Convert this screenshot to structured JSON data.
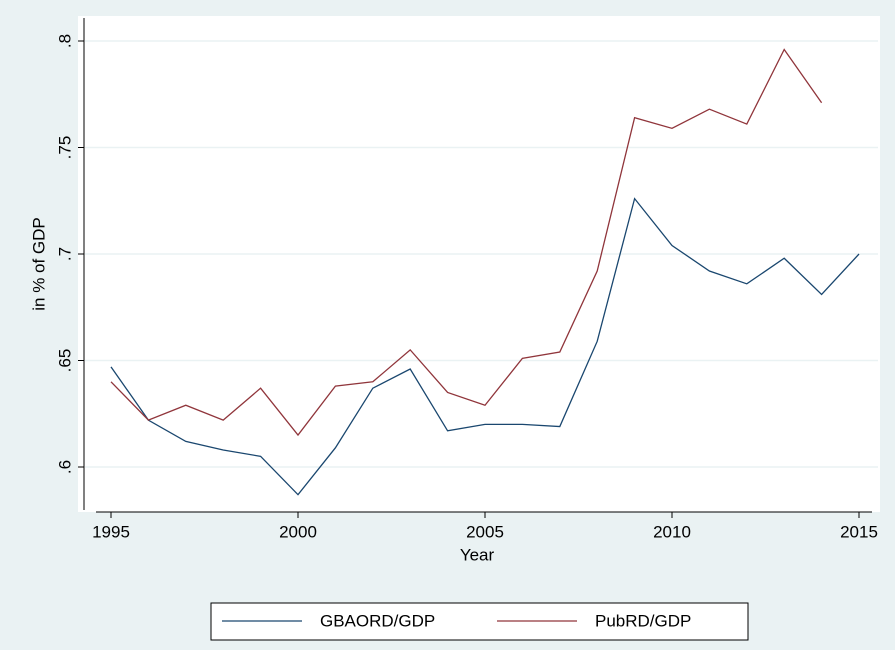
{
  "chart_data": {
    "type": "line",
    "x_label": "Year",
    "y_label": "in % of GDP",
    "x": [
      1995,
      1996,
      1997,
      1998,
      1999,
      2000,
      2001,
      2002,
      2003,
      2004,
      2005,
      2006,
      2007,
      2008,
      2009,
      2010,
      2011,
      2012,
      2013,
      2014,
      2015
    ],
    "series": [
      {
        "name": "GBAORD/GDP",
        "color": "#1a476f",
        "values": [
          0.647,
          0.622,
          0.612,
          0.608,
          0.605,
          0.587,
          0.609,
          0.637,
          0.646,
          0.617,
          0.62,
          0.62,
          0.619,
          0.659,
          0.726,
          0.704,
          0.692,
          0.686,
          0.698,
          0.681,
          0.7
        ]
      },
      {
        "name": "PubRD/GDP",
        "color": "#90353b",
        "values": [
          0.64,
          0.622,
          0.629,
          0.622,
          0.637,
          0.615,
          0.638,
          0.64,
          0.655,
          0.635,
          0.629,
          0.651,
          0.654,
          0.692,
          0.764,
          0.759,
          0.768,
          0.761,
          0.796,
          0.771,
          null
        ]
      }
    ],
    "xlim": [
      1995,
      2015
    ],
    "xticks": [
      1995,
      2000,
      2005,
      2010,
      2015
    ],
    "ylim": [
      0.6,
      0.8
    ],
    "yticks": [
      {
        "value": 0.6,
        "label": ".6"
      },
      {
        "value": 0.65,
        "label": ".65"
      },
      {
        "value": 0.7,
        "label": ".7"
      },
      {
        "value": 0.75,
        "label": ".75"
      },
      {
        "value": 0.8,
        "label": ".8"
      }
    ],
    "grid": true,
    "legend": "bottom"
  }
}
